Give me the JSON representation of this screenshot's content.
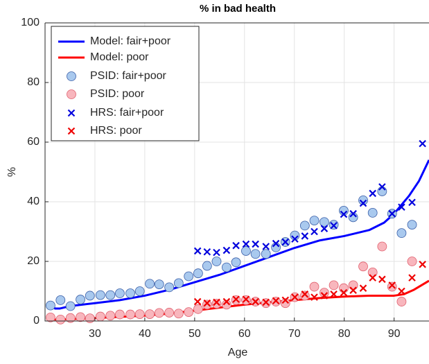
{
  "chart_data": {
    "type": "line",
    "title": "% in bad health",
    "x_label": "Age",
    "y_label": "%",
    "xlim": [
      20,
      97
    ],
    "ylim": [
      0,
      100
    ],
    "xticks": [
      30,
      40,
      50,
      60,
      70,
      80,
      90
    ],
    "yticks": [
      0,
      20,
      40,
      60,
      80,
      100
    ],
    "grid": true,
    "legend": "upper-left",
    "series": [
      {
        "name": "Model: fair+poor",
        "color": "#0000ff",
        "marker": "line",
        "x": [
          21,
          22,
          23,
          25,
          30,
          35,
          40,
          45,
          50,
          55,
          60,
          65,
          70,
          75,
          80,
          85,
          88,
          90,
          93,
          95,
          97
        ],
        "values": [
          5.5,
          4.2,
          4.2,
          5,
          6,
          7,
          8.5,
          10.5,
          13,
          15.5,
          18.5,
          21.5,
          24.5,
          27,
          28.5,
          30.5,
          33,
          36,
          42,
          47,
          54
        ]
      },
      {
        "name": "Model: poor",
        "color": "#ff0000",
        "marker": "line",
        "x": [
          21,
          22,
          25,
          30,
          35,
          40,
          45,
          50,
          55,
          60,
          65,
          70,
          75,
          80,
          85,
          90,
          92,
          94,
          97
        ],
        "values": [
          1.3,
          0.5,
          0.6,
          1,
          1.4,
          1.8,
          2.5,
          3.5,
          4.5,
          5.5,
          6.3,
          7,
          7.7,
          8.2,
          8.5,
          8.5,
          9,
          10.5,
          13.5
        ]
      },
      {
        "name": "PSID: fair+poor",
        "color": "#a9c9ee",
        "edge": "#3b5fa8",
        "marker": "o",
        "x": [
          21.1,
          23.1,
          25.1,
          27.1,
          29,
          31.1,
          33.1,
          35,
          37.1,
          39,
          41,
          42.9,
          44.9,
          46.8,
          48.8,
          50.7,
          52.5,
          54.4,
          56.4,
          58.3,
          60.3,
          62.2,
          64.3,
          66.3,
          68.2,
          70.1,
          72.1,
          74,
          76,
          77.9,
          79.9,
          81.8,
          83.8,
          85.7,
          87.6,
          89.6,
          91.5,
          93.6
        ],
        "values": [
          5.2,
          7,
          5,
          7.2,
          8.5,
          8.7,
          8.7,
          9.3,
          9.3,
          10,
          12.5,
          12.3,
          11.3,
          12.7,
          15,
          16,
          18.5,
          20,
          18,
          19.7,
          23.5,
          22.5,
          22.5,
          24.7,
          26.5,
          28.7,
          32,
          33.7,
          33.2,
          32.3,
          37,
          34.8,
          40.5,
          36.3,
          43.5,
          36,
          29.5,
          32.3
        ]
      },
      {
        "name": "PSID: poor",
        "color": "#f8b6bd",
        "edge": "#e0606e",
        "marker": "o",
        "x": [
          21.1,
          23.1,
          25.1,
          27.1,
          29,
          31.1,
          33.1,
          35,
          37.1,
          39,
          41,
          42.9,
          44.9,
          46.8,
          48.8,
          50.7,
          52.5,
          54.4,
          56.4,
          58.3,
          60.3,
          62.2,
          64.3,
          66.3,
          68.2,
          70.1,
          72.1,
          74,
          76,
          77.9,
          79.9,
          81.8,
          83.8,
          85.7,
          87.6,
          89.6,
          91.5,
          93.6
        ],
        "values": [
          1.2,
          0.5,
          1,
          1.3,
          0.9,
          1.5,
          1.8,
          2.2,
          2.2,
          2.3,
          2.3,
          2.7,
          2.8,
          2.5,
          3,
          4,
          5.5,
          5.8,
          5.5,
          7,
          7,
          6.5,
          6,
          6.5,
          6,
          8,
          8.5,
          11.5,
          9.5,
          12,
          11,
          12,
          18.3,
          16.3,
          25,
          11.5,
          6.5,
          20
        ]
      },
      {
        "name": "HRS: fair+poor",
        "color": "#0000dd",
        "marker": "x",
        "x": [
          50.6,
          52.5,
          54.4,
          56.4,
          58.3,
          60.3,
          62.2,
          64.3,
          66.3,
          68.2,
          70.1,
          72.1,
          74,
          76,
          77.9,
          79.9,
          81.8,
          83.8,
          85.7,
          87.6,
          89.6,
          91.5,
          93.6,
          95.7
        ],
        "values": [
          23.5,
          23.2,
          23,
          23.7,
          25.3,
          25.8,
          25.8,
          25,
          26,
          26.5,
          27.5,
          28.5,
          30,
          31,
          32,
          35.8,
          36,
          39.5,
          42.8,
          45,
          36,
          38.2,
          39.8,
          59.5
        ]
      },
      {
        "name": "HRS: poor",
        "color": "#ee0000",
        "marker": "x",
        "x": [
          50.6,
          52.5,
          54.4,
          56.4,
          58.3,
          60.3,
          62.2,
          64.3,
          66.3,
          68.2,
          70.1,
          72.1,
          74,
          76,
          77.9,
          79.9,
          81.8,
          83.8,
          85.7,
          87.6,
          89.6,
          91.5,
          93.6,
          95.7
        ],
        "values": [
          6.5,
          6,
          6.3,
          6.5,
          7.3,
          7.3,
          6.5,
          6.3,
          6.8,
          7,
          8,
          9,
          8,
          8.5,
          9,
          9.5,
          10.3,
          11,
          14.5,
          14,
          12,
          10,
          14.5,
          19
        ]
      }
    ]
  }
}
